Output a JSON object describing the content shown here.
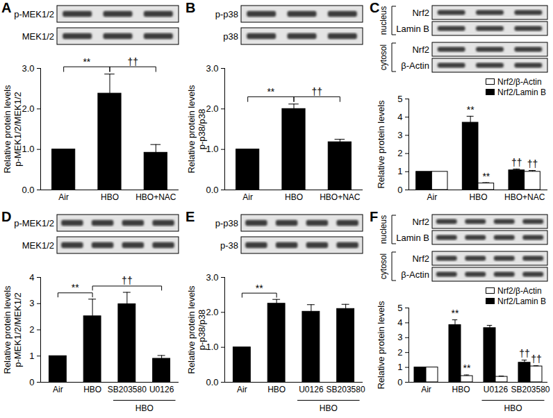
{
  "chart_data": [
    {
      "panel": "A",
      "type": "bar",
      "blot": {
        "rows": [
          "p-MEK1/2",
          "MEK1/2"
        ]
      },
      "y_label": "Relative protein levels\np-MEK1/2/MEK1/2",
      "categories": [
        "Air",
        "HBO",
        "HBO+NAC"
      ],
      "values": [
        1,
        2.38,
        0.92
      ],
      "errors": [
        null,
        0.48,
        0.2
      ],
      "color": "#000000",
      "ylim": [
        0,
        3
      ],
      "yticks": [
        0,
        1,
        2,
        3
      ],
      "brackets": [
        {
          "from": "Air",
          "to": "HBO",
          "text": "**"
        },
        {
          "from": "HBO",
          "to": "HBO+NAC",
          "text": "††"
        }
      ]
    },
    {
      "panel": "B",
      "type": "bar",
      "blot": {
        "rows": [
          "p-p38",
          "p38"
        ]
      },
      "y_label": "Relative protein levels\np-p38/p38",
      "categories": [
        "Air",
        "HBO",
        "HBO+NAC"
      ],
      "values": [
        1,
        2.0,
        1.18
      ],
      "errors": [
        null,
        0.12,
        0.07
      ],
      "color": "#000000",
      "ylim": [
        0,
        3
      ],
      "yticks": [
        0,
        1,
        2,
        3
      ],
      "brackets": [
        {
          "from": "Air",
          "to": "HBO",
          "text": "**"
        },
        {
          "from": "HBO",
          "to": "HBO+NAC",
          "text": "††"
        }
      ]
    },
    {
      "panel": "C",
      "type": "bar",
      "blot": {
        "groups": [
          {
            "label": "nucleus",
            "rows": [
              "Nrf2",
              "Lamin B"
            ]
          },
          {
            "label": "cytosol",
            "rows": [
              "Nrf2",
              "β-Actin"
            ]
          }
        ]
      },
      "y_label": "Relative protein levels",
      "categories": [
        "Air",
        "HBO",
        "HBO+NAC"
      ],
      "series": [
        {
          "name": "Nrf2/Lamin B",
          "color": "#000000",
          "values": [
            1,
            3.7,
            1.08
          ],
          "errors": [
            null,
            0.35,
            0.07
          ],
          "annotations": [
            null,
            "**",
            "††"
          ]
        },
        {
          "name": "Nrf2/β-Actin",
          "color": "#ffffff",
          "values": [
            1,
            0.36,
            1.0
          ],
          "errors": [
            null,
            0.04,
            0.07
          ],
          "annotations": [
            null,
            "**",
            "††"
          ]
        }
      ],
      "ylim": [
        0,
        5
      ],
      "yticks": [
        0,
        1,
        2,
        3,
        4,
        5
      ],
      "legend": "top-right"
    },
    {
      "panel": "D",
      "type": "bar",
      "blot": {
        "rows": [
          "p-MEK1/2",
          "MEK1/2"
        ]
      },
      "y_label": "Relative protein levels\np-MEK1/2/MEK1/2",
      "categories": [
        "Air",
        "HBO",
        "SB203580",
        "U0126"
      ],
      "values": [
        1,
        2.52,
        2.98,
        0.9
      ],
      "errors": [
        null,
        0.65,
        0.45,
        0.12
      ],
      "group": {
        "label": "HBO",
        "categories": [
          "SB203580",
          "U0126"
        ]
      },
      "color": "#000000",
      "ylim": [
        0,
        4
      ],
      "yticks": [
        0,
        1,
        2,
        3,
        4
      ],
      "brackets": [
        {
          "from": "Air",
          "to": "HBO",
          "text": "**"
        },
        {
          "from": "HBO",
          "to": "U0126",
          "text": "††"
        }
      ]
    },
    {
      "panel": "E",
      "type": "bar",
      "blot": {
        "rows": [
          "p-p38",
          "p-38"
        ]
      },
      "y_label": "Relative protein levels\np-p38/p38",
      "categories": [
        "Air",
        "HBO",
        "U0126",
        "SB203580"
      ],
      "values": [
        1,
        2.25,
        2.02,
        2.1
      ],
      "errors": [
        null,
        0.12,
        0.2,
        0.13
      ],
      "group": {
        "label": "HBO",
        "categories": [
          "U0126",
          "SB203580"
        ]
      },
      "color": "#000000",
      "ylim": [
        0,
        3
      ],
      "yticks": [
        0,
        1,
        2,
        3
      ],
      "brackets": [
        {
          "from": "Air",
          "to": "HBO",
          "text": "**"
        }
      ]
    },
    {
      "panel": "F",
      "type": "bar",
      "blot": {
        "groups": [
          {
            "label": "nucleus",
            "rows": [
              "Nrf2",
              "Lamin B"
            ]
          },
          {
            "label": "cytosol",
            "rows": [
              "Nrf2",
              "β-Actin"
            ]
          }
        ]
      },
      "y_label": "Relative protein levels",
      "categories": [
        "Air",
        "HBO",
        "U0126",
        "SB203580"
      ],
      "group": {
        "label": "HBO",
        "categories": [
          "U0126",
          "SB203580"
        ]
      },
      "series": [
        {
          "name": "Nrf2/Lamin B",
          "color": "#000000",
          "values": [
            1,
            3.85,
            3.65,
            1.32
          ],
          "errors": [
            null,
            0.35,
            0.18,
            0.17
          ],
          "annotations": [
            null,
            "**",
            null,
            "††"
          ]
        },
        {
          "name": "Nrf2/β-Actin",
          "color": "#ffffff",
          "values": [
            1,
            0.42,
            0.37,
            1.07
          ],
          "errors": [
            null,
            0.07,
            0.05,
            0.04
          ],
          "annotations": [
            null,
            "**",
            null,
            "††"
          ]
        }
      ],
      "ylim": [
        0,
        5
      ],
      "yticks": [
        0,
        1,
        2,
        3,
        4,
        5
      ],
      "legend": "top-right"
    }
  ]
}
